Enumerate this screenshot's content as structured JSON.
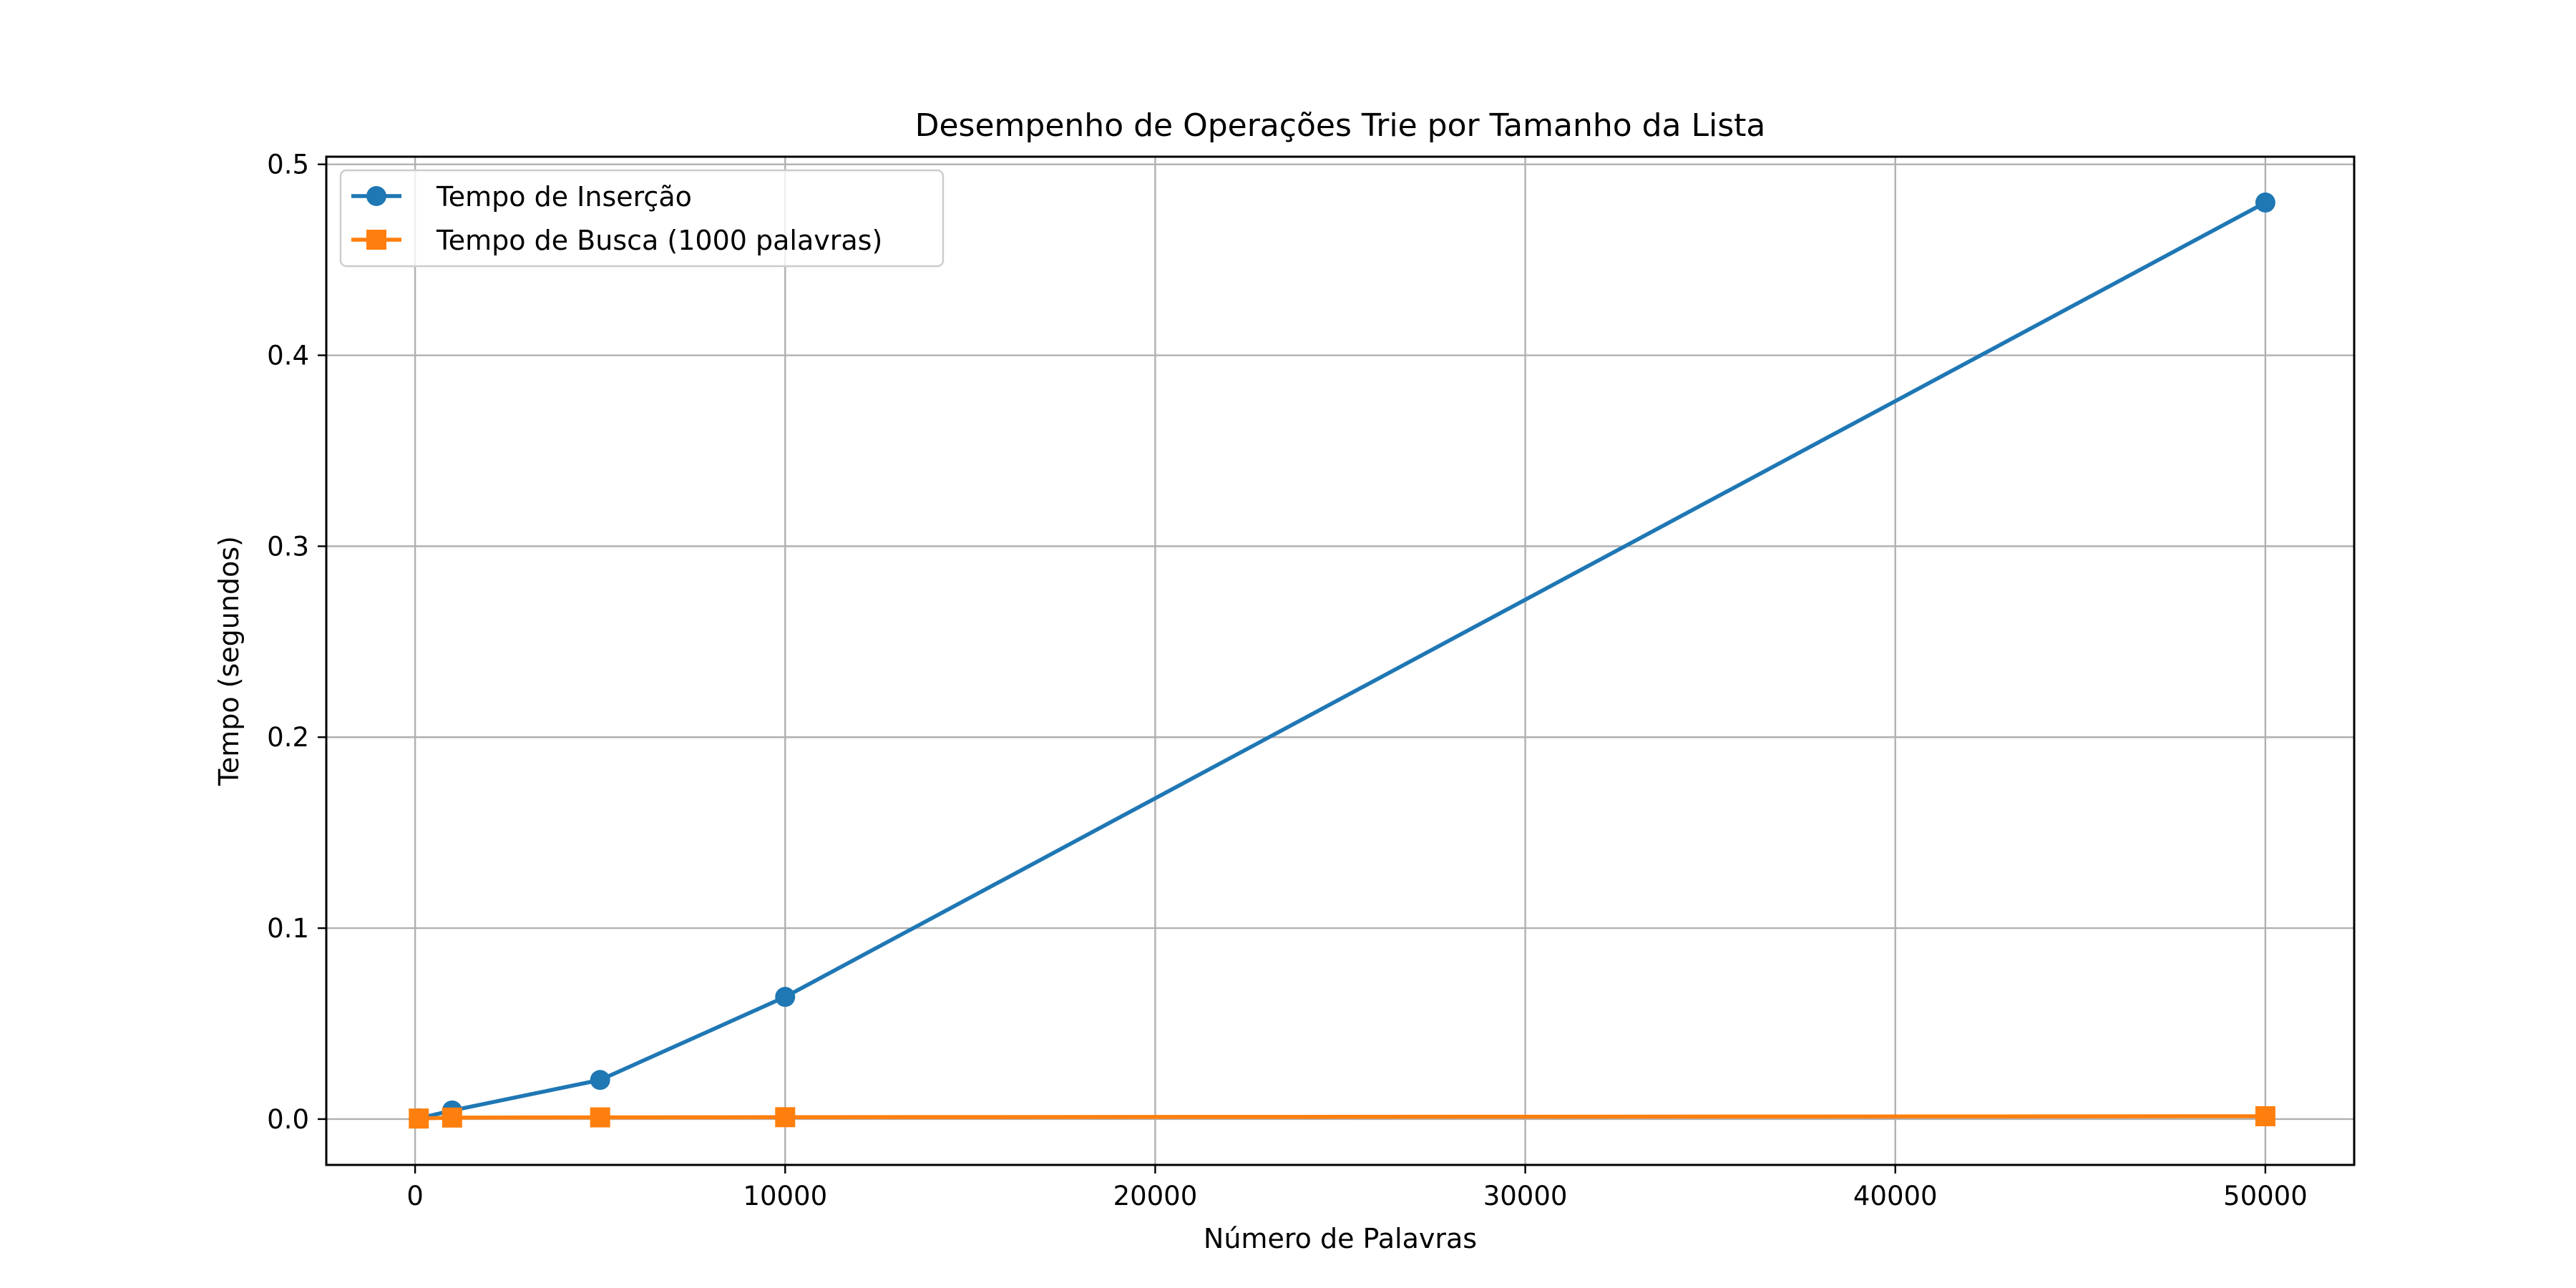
{
  "chart_data": {
    "type": "line",
    "title": "Desempenho de Operações Trie por Tamanho da Lista",
    "xlabel": "Número de Palavras",
    "ylabel": "Tempo (segundos)",
    "xlim": [
      -2400,
      52400
    ],
    "ylim": [
      -0.024,
      0.504
    ],
    "xticks": [
      0,
      10000,
      20000,
      30000,
      40000,
      50000
    ],
    "yticks": [
      0.0,
      0.1,
      0.2,
      0.3,
      0.4,
      0.5
    ],
    "xtick_labels": [
      "0",
      "10000",
      "20000",
      "30000",
      "40000",
      "50000"
    ],
    "ytick_labels": [
      "0.0",
      "0.1",
      "0.2",
      "0.3",
      "0.4",
      "0.5"
    ],
    "grid": true,
    "legend_position": "upper left",
    "series": [
      {
        "name": "Tempo de Inserção",
        "color": "#1f77b4",
        "marker": "circle",
        "x": [
          100,
          1000,
          5000,
          10000,
          50000
        ],
        "y": [
          0.0004,
          0.0045,
          0.0205,
          0.064,
          0.48
        ]
      },
      {
        "name": "Tempo de Busca (1000 palavras)",
        "color": "#ff7f0e",
        "marker": "square",
        "x": [
          100,
          1000,
          5000,
          10000,
          50000
        ],
        "y": [
          0.0003,
          0.0008,
          0.0009,
          0.001,
          0.0015
        ]
      }
    ]
  }
}
